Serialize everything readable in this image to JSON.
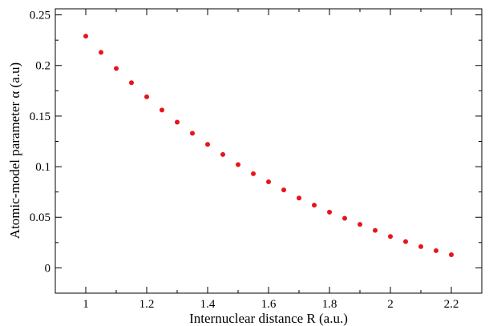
{
  "chart_data": {
    "type": "scatter",
    "title": "",
    "xlabel": "Internuclear distance R (a.u.)",
    "ylabel": "Atomic-model parameter α (a.u)",
    "xlim": [
      0.9,
      2.3
    ],
    "ylim": [
      -0.025,
      0.256
    ],
    "x_ticks": [
      1,
      1.2,
      1.4,
      1.6,
      1.8,
      2,
      2.2
    ],
    "x_tick_labels": [
      "1",
      "1.2",
      "1.4",
      "1.6",
      "1.8",
      "2",
      "2.2"
    ],
    "y_ticks": [
      0,
      0.05,
      0.1,
      0.15,
      0.2,
      0.25
    ],
    "y_tick_labels": [
      "0",
      "0.05",
      "0.1",
      "0.15",
      "0.2",
      "0.25"
    ],
    "grid": false,
    "marker_color": "#e8141a",
    "series": [
      {
        "x": [
          1.0,
          1.05,
          1.1,
          1.15,
          1.2,
          1.25,
          1.3,
          1.35,
          1.4,
          1.45,
          1.5,
          1.55,
          1.6,
          1.65,
          1.7,
          1.75,
          1.8,
          1.85,
          1.9,
          1.95,
          2.0,
          2.05,
          2.1,
          2.15,
          2.2
        ],
        "y": [
          0.229,
          0.213,
          0.197,
          0.183,
          0.169,
          0.156,
          0.144,
          0.133,
          0.122,
          0.112,
          0.102,
          0.093,
          0.085,
          0.077,
          0.069,
          0.062,
          0.055,
          0.049,
          0.043,
          0.037,
          0.031,
          0.026,
          0.021,
          0.017,
          0.013
        ]
      }
    ]
  }
}
